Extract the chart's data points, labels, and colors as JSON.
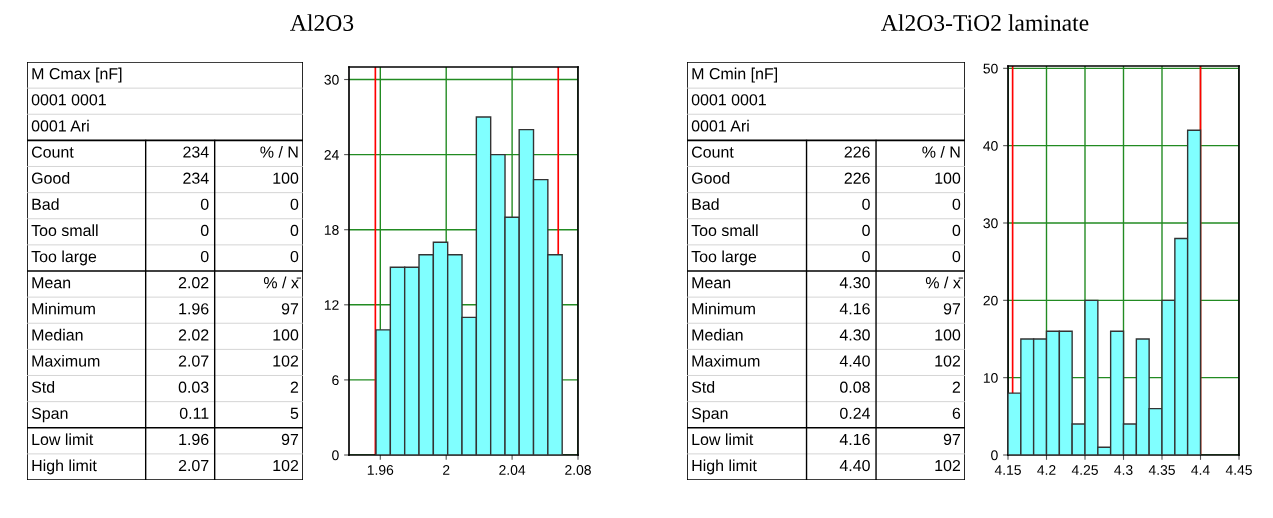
{
  "chart_data": [
    {
      "type": "other",
      "title": "Al2O3",
      "annotations": [
        "M Cmax [nF]",
        "0001 0001",
        "0001 Ari",
        "Count",
        "234",
        "% / N",
        "Good",
        "234",
        "100",
        "Bad",
        "0",
        "0",
        "Too small",
        "0",
        "0",
        "Too large",
        "0",
        "0",
        "Mean",
        "2.02",
        "% / x̄",
        "Minimum",
        "1.96",
        "97",
        "Median",
        "2.02",
        "100",
        "Maximum",
        "2.07",
        "102",
        "Std",
        "0.03",
        "2",
        "Span",
        "0.11",
        "5",
        "Low limit",
        "1.96",
        "97",
        "High limit",
        "2.07",
        "102"
      ]
    },
    {
      "type": "histogram",
      "color": "#80ffff",
      "bins": [
        1.9574,
        1.9661,
        1.9748,
        1.9835,
        1.9922,
        2.0009,
        2.0096,
        2.0183,
        2.027,
        2.0357,
        2.0443,
        2.053,
        2.0617,
        2.0704
      ],
      "values": [
        10,
        15,
        15,
        16,
        17,
        16,
        11,
        27,
        24,
        19,
        26,
        22,
        16
      ],
      "xlim": [
        1.941,
        2.08
      ],
      "xticks": [
        1.96,
        2,
        2.04,
        2.08
      ],
      "ylim": [
        0,
        31
      ],
      "yticks": [
        0,
        6,
        12,
        18,
        24,
        30
      ],
      "grid": true,
      "ref_lines": [
        {
          "axis": "x",
          "value": 1.957,
          "color": "#ff0000"
        },
        {
          "axis": "x",
          "value": 2.068,
          "color": "#ff0000"
        }
      ]
    },
    {
      "type": "other",
      "title": "Al2O3-TiO2 laminate",
      "annotations": [
        "M Cmin [nF]",
        "0001 0001",
        "0001 Ari",
        "Count",
        "226",
        "% / N",
        "Good",
        "226",
        "100",
        "Bad",
        "0",
        "0",
        "Too small",
        "0",
        "0",
        "Too large",
        "0",
        "0",
        "Mean",
        "4.30",
        "% / x̄",
        "Minimum",
        "4.16",
        "97",
        "Median",
        "4.30",
        "100",
        "Maximum",
        "4.40",
        "102",
        "Std",
        "0.08",
        "2",
        "Span",
        "0.24",
        "6",
        "Low limit",
        "4.16",
        "97",
        "High limit",
        "4.40",
        "102"
      ]
    },
    {
      "type": "histogram",
      "color": "#80ffff",
      "bins": [
        4.15,
        4.1667,
        4.1833,
        4.2,
        4.2167,
        4.2333,
        4.25,
        4.2667,
        4.2833,
        4.3,
        4.3167,
        4.3333,
        4.35,
        4.3667,
        4.3833,
        4.4
      ],
      "values": [
        8,
        15,
        15,
        16,
        16,
        4,
        20,
        1,
        16,
        4,
        15,
        6,
        20,
        28,
        42
      ],
      "xlim": [
        4.15,
        4.45
      ],
      "xticks": [
        4.15,
        4.2,
        4.25,
        4.3,
        4.35,
        4.4,
        4.45
      ],
      "ylim": [
        0,
        50.3
      ],
      "yticks": [
        0,
        10,
        20,
        30,
        40,
        50
      ],
      "grid": true,
      "ref_lines": [
        {
          "axis": "x",
          "value": 4.156,
          "color": "#ff0000"
        },
        {
          "axis": "x",
          "value": 4.4,
          "color": "#ff0000"
        }
      ]
    }
  ]
}
